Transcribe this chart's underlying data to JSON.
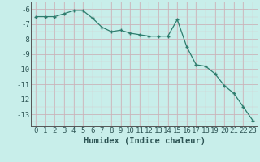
{
  "x": [
    0,
    1,
    2,
    3,
    4,
    5,
    6,
    7,
    8,
    9,
    10,
    11,
    12,
    13,
    14,
    15,
    16,
    17,
    18,
    19,
    20,
    21,
    22,
    23
  ],
  "y": [
    -6.5,
    -6.5,
    -6.5,
    -6.3,
    -6.1,
    -6.1,
    -6.6,
    -7.2,
    -7.5,
    -7.4,
    -7.6,
    -7.7,
    -7.8,
    -7.8,
    -7.8,
    -6.7,
    -8.5,
    -9.7,
    -9.8,
    -10.3,
    -11.1,
    -11.6,
    -12.5,
    -13.4
  ],
  "title": "",
  "xlabel": "Humidex (Indice chaleur)",
  "ylabel": "",
  "xlim": [
    -0.5,
    23.5
  ],
  "ylim": [
    -13.8,
    -5.5
  ],
  "yticks": [
    -6,
    -7,
    -8,
    -9,
    -10,
    -11,
    -12,
    -13
  ],
  "xticks": [
    0,
    1,
    2,
    3,
    4,
    5,
    6,
    7,
    8,
    9,
    10,
    11,
    12,
    13,
    14,
    15,
    16,
    17,
    18,
    19,
    20,
    21,
    22,
    23
  ],
  "line_color": "#2e7d6e",
  "marker": "+",
  "bg_color": "#c8eeea",
  "grid_color_major": "#c8a8b0",
  "grid_color_minor": "#d8c8cc",
  "tick_fontsize": 6.5,
  "xlabel_fontsize": 7.5
}
